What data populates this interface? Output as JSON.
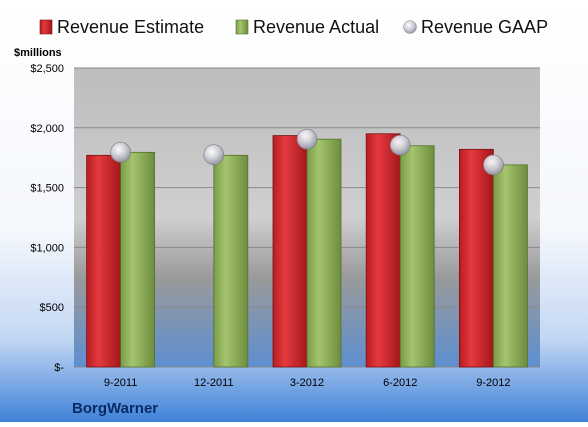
{
  "chart_data": {
    "type": "bar",
    "title": "",
    "company": "BorgWarner",
    "unit_label": "$millions",
    "categories": [
      "9-2011",
      "12-2011",
      "3-2012",
      "6-2012",
      "9-2012"
    ],
    "series": [
      {
        "name": "Revenue Estimate",
        "kind": "bar",
        "color": "#d42a2e",
        "values": [
          1770,
          null,
          1935,
          1950,
          1820
        ]
      },
      {
        "name": "Revenue Actual",
        "kind": "bar",
        "color": "#8fb35a",
        "values": [
          1795,
          1770,
          1905,
          1850,
          1690
        ]
      },
      {
        "name": "Revenue GAAP",
        "kind": "marker",
        "color": "#b8b8c8",
        "values": [
          1795,
          1775,
          1905,
          1855,
          1690
        ]
      }
    ],
    "y_ticks": [
      {
        "value": 0,
        "label": "$-"
      },
      {
        "value": 500,
        "label": "$500"
      },
      {
        "value": 1000,
        "label": "$1,000"
      },
      {
        "value": 1500,
        "label": "$1,500"
      },
      {
        "value": 2000,
        "label": "$2,000"
      },
      {
        "value": 2500,
        "label": "$2,500"
      }
    ],
    "ylim": [
      0,
      2500
    ],
    "grid": true,
    "legend_position": "top"
  }
}
